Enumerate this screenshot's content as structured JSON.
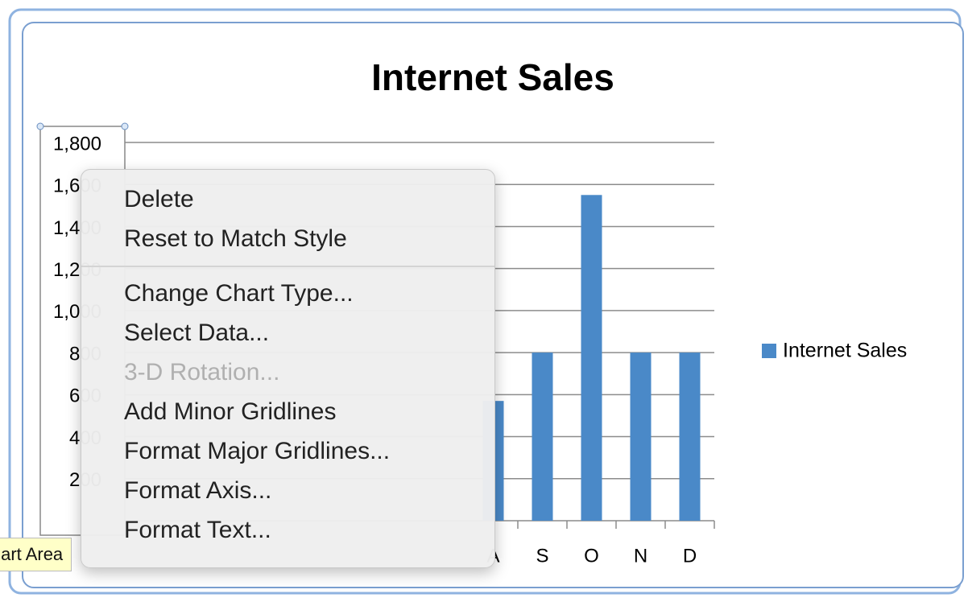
{
  "chart_data": {
    "type": "bar",
    "title": "Internet Sales",
    "categories": [
      "A",
      "S",
      "O",
      "N",
      "D"
    ],
    "series": [
      {
        "name": "Internet Sales",
        "color": "#4a89c8",
        "values": [
          570,
          800,
          1550,
          800,
          800
        ]
      }
    ],
    "ylim": [
      0,
      1800
    ],
    "yticks": [
      200,
      400,
      600,
      800,
      {
        "value": 1000,
        "label": "1,000"
      },
      {
        "value": 1200,
        "label": "1,200"
      },
      {
        "value": 1400,
        "label": "1,400"
      },
      {
        "value": 1600,
        "label": "1,600"
      },
      {
        "value": 1800,
        "label": "1,800"
      }
    ],
    "grid": true,
    "legend": "right"
  },
  "context_menu": {
    "sections": [
      {
        "items": [
          {
            "label": "Delete",
            "enabled": true
          },
          {
            "label": "Reset to Match Style",
            "enabled": true
          }
        ]
      },
      {
        "items": [
          {
            "label": "Change Chart Type...",
            "enabled": true
          },
          {
            "label": "Select Data...",
            "enabled": true
          },
          {
            "label": "3-D Rotation...",
            "enabled": false
          },
          {
            "label": "Add Minor Gridlines",
            "enabled": true
          },
          {
            "label": "Format Major Gridlines...",
            "enabled": true
          },
          {
            "label": "Format Axis...",
            "enabled": true
          },
          {
            "label": "Format Text...",
            "enabled": true
          }
        ]
      }
    ]
  },
  "tooltip": "Chart Area"
}
